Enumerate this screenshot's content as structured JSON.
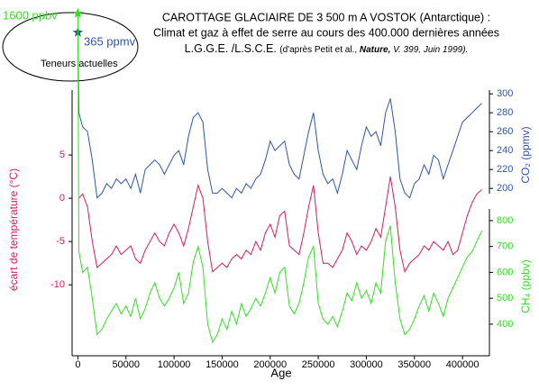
{
  "chart_data": {
    "type": "line",
    "title_lines": [
      "CAROTTAGE GLACIAIRE DE 3 500 m A VOSTOK (Antarctique) :",
      "Climat et gaz à effet de serre au cours des 400.000 dernières années"
    ],
    "subtitle_parts": [
      "L.G.G.E. /L.S.C.E. ",
      "(d'après Petit et al., ",
      "Nature,",
      " V. 399, Juin 1999)."
    ],
    "annotations": [
      "1600 ppbv",
      "365 ppmv",
      "Teneurs actuelles"
    ],
    "xlabel": "Age",
    "ylabel": "écart de température (°C)",
    "y2label": "CO₂ (ppmv)",
    "y3label": "CH₄ (ppbv)",
    "xlim": [
      -6000,
      428000
    ],
    "xticks": [
      0,
      50000,
      100000,
      150000,
      200000,
      250000,
      300000,
      350000,
      400000
    ],
    "ylim": [
      -18.2,
      12.5
    ],
    "yticks": [
      5,
      0,
      -5,
      -10
    ],
    "y2lim": [
      23,
      304
    ],
    "y2ticks": [
      200,
      220,
      240,
      260,
      280,
      300
    ],
    "y3lim": [
      278,
      1304
    ],
    "y3ticks": [
      400,
      500,
      600,
      700,
      800
    ],
    "series": [
      {
        "name": "CO₂",
        "axis": "y2",
        "color": "#2e55a8",
        "x": [
          0,
          1000,
          5000,
          10000,
          15000,
          20000,
          25000,
          30000,
          35000,
          40000,
          45000,
          50000,
          55000,
          60000,
          65000,
          70000,
          75000,
          80000,
          85000,
          90000,
          95000,
          100000,
          105000,
          110000,
          115000,
          120000,
          125000,
          130000,
          135000,
          140000,
          145000,
          150000,
          155000,
          160000,
          165000,
          170000,
          175000,
          180000,
          185000,
          190000,
          195000,
          200000,
          205000,
          210000,
          215000,
          220000,
          225000,
          230000,
          235000,
          240000,
          245000,
          250000,
          255000,
          260000,
          265000,
          270000,
          275000,
          280000,
          285000,
          290000,
          295000,
          300000,
          305000,
          310000,
          315000,
          320000,
          325000,
          330000,
          335000,
          340000,
          345000,
          350000,
          355000,
          360000,
          365000,
          370000,
          375000,
          380000,
          385000,
          390000,
          395000,
          400000,
          405000,
          410000,
          415000,
          420000
        ],
        "values": [
          365,
          280,
          265,
          260,
          230,
          190,
          195,
          205,
          200,
          210,
          205,
          210,
          200,
          215,
          195,
          220,
          225,
          230,
          225,
          215,
          225,
          235,
          240,
          225,
          255,
          275,
          280,
          270,
          220,
          195,
          195,
          200,
          195,
          190,
          200,
          195,
          205,
          200,
          210,
          215,
          230,
          250,
          240,
          245,
          250,
          225,
          215,
          210,
          235,
          260,
          280,
          240,
          215,
          205,
          210,
          195,
          215,
          240,
          230,
          220,
          245,
          265,
          255,
          260,
          245,
          280,
          295,
          260,
          210,
          195,
          190,
          205,
          210,
          225,
          215,
          235,
          230,
          210,
          225,
          240,
          255,
          270,
          275,
          280,
          285,
          290
        ]
      },
      {
        "name": "écart de température",
        "axis": "y",
        "color": "#d81b5a",
        "x": [
          1000,
          5000,
          10000,
          15000,
          20000,
          25000,
          30000,
          35000,
          40000,
          45000,
          50000,
          55000,
          60000,
          65000,
          70000,
          75000,
          80000,
          85000,
          90000,
          95000,
          100000,
          105000,
          110000,
          115000,
          120000,
          125000,
          130000,
          135000,
          140000,
          145000,
          150000,
          155000,
          160000,
          165000,
          170000,
          175000,
          180000,
          185000,
          190000,
          195000,
          200000,
          205000,
          210000,
          215000,
          220000,
          225000,
          230000,
          235000,
          240000,
          245000,
          250000,
          255000,
          260000,
          265000,
          270000,
          275000,
          280000,
          285000,
          290000,
          295000,
          300000,
          305000,
          310000,
          315000,
          320000,
          325000,
          330000,
          335000,
          340000,
          345000,
          350000,
          355000,
          360000,
          365000,
          370000,
          375000,
          380000,
          385000,
          390000,
          395000,
          400000,
          405000,
          410000,
          415000,
          420000
        ],
        "values": [
          0,
          0.5,
          -1,
          -5,
          -8,
          -7.5,
          -7,
          -6.5,
          -5.5,
          -6.5,
          -6,
          -5.5,
          -7,
          -7.5,
          -6,
          -5,
          -4,
          -5,
          -5.5,
          -4,
          -3,
          -4,
          -5.5,
          -3.5,
          -1,
          1.5,
          0,
          -5,
          -8.5,
          -8,
          -7.5,
          -8,
          -7,
          -6.5,
          -7,
          -6,
          -6.5,
          -5,
          -6,
          -4,
          -3,
          -4.5,
          -2,
          -1.5,
          -5.5,
          -6,
          -6.5,
          -4,
          -1,
          1.5,
          -4,
          -7.5,
          -7.5,
          -8,
          -7,
          -6,
          -4,
          -5,
          -6.5,
          -5.5,
          -6,
          -5,
          -3.5,
          -4.5,
          -1,
          2.5,
          -1,
          -6,
          -8.5,
          -7.5,
          -7,
          -6.5,
          -5.5,
          -6,
          -5,
          -5.5,
          -6,
          -5,
          -6.5,
          -6,
          -4,
          -2,
          -0.5,
          0.5,
          1
        ]
      },
      {
        "name": "CH₄",
        "axis": "y3",
        "color": "#33dd22",
        "x": [
          0,
          1000,
          5000,
          10000,
          15000,
          20000,
          25000,
          30000,
          35000,
          40000,
          45000,
          50000,
          55000,
          60000,
          65000,
          70000,
          75000,
          80000,
          85000,
          90000,
          95000,
          100000,
          105000,
          110000,
          115000,
          120000,
          125000,
          130000,
          135000,
          140000,
          145000,
          150000,
          155000,
          160000,
          165000,
          170000,
          175000,
          180000,
          185000,
          190000,
          195000,
          200000,
          205000,
          210000,
          215000,
          220000,
          225000,
          230000,
          235000,
          240000,
          245000,
          250000,
          255000,
          260000,
          265000,
          270000,
          275000,
          280000,
          285000,
          290000,
          295000,
          300000,
          305000,
          310000,
          315000,
          320000,
          325000,
          330000,
          335000,
          340000,
          345000,
          350000,
          355000,
          360000,
          365000,
          370000,
          375000,
          380000,
          385000,
          390000,
          395000,
          400000,
          405000,
          410000,
          415000,
          420000
        ],
        "values": [
          1600,
          680,
          600,
          620,
          500,
          360,
          380,
          420,
          450,
          480,
          440,
          470,
          430,
          500,
          420,
          460,
          520,
          560,
          500,
          470,
          500,
          540,
          600,
          480,
          520,
          640,
          700,
          620,
          400,
          330,
          360,
          420,
          380,
          450,
          400,
          480,
          430,
          460,
          500,
          470,
          520,
          580,
          520,
          600,
          620,
          470,
          440,
          480,
          560,
          660,
          700,
          480,
          420,
          400,
          430,
          390,
          450,
          520,
          490,
          560,
          500,
          530,
          480,
          560,
          520,
          720,
          780,
          560,
          420,
          360,
          380,
          420,
          470,
          510,
          450,
          520,
          480,
          430,
          500,
          540,
          580,
          620,
          660,
          680,
          720,
          760
        ]
      }
    ]
  }
}
